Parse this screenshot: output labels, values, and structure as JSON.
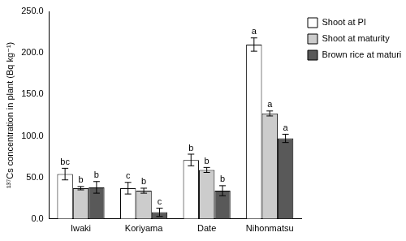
{
  "chart_data": {
    "type": "bar",
    "y_label": "¹³⁷Cs concentration in plant (Bq kg⁻¹)",
    "categories": [
      "Iwaki",
      "Koriyama",
      "Date",
      "Nihonmatsu"
    ],
    "series": [
      {
        "name": "Shoot at PI",
        "color": "#ffffff",
        "values": [
          54,
          37,
          71,
          210
        ],
        "errors": [
          7,
          7,
          7,
          8
        ],
        "letters": [
          "bc",
          "c",
          "b",
          "a"
        ]
      },
      {
        "name": "Shoot at maturity",
        "color": "#cccccc",
        "values": [
          37,
          34,
          59,
          127
        ],
        "errors": [
          2,
          3,
          3,
          3
        ],
        "letters": [
          "b",
          "b",
          "b",
          "a"
        ]
      },
      {
        "name": "Brown rice at maturity",
        "color": "#595959",
        "values": [
          38,
          8,
          34,
          97
        ],
        "errors": [
          7,
          5,
          6,
          5
        ],
        "letters": [
          "b",
          "c",
          "b",
          "a"
        ]
      }
    ],
    "ylim": [
      0,
      250
    ],
    "yticks": [
      {
        "value": 0,
        "label": "0.0"
      },
      {
        "value": 50,
        "label": "50.0"
      },
      {
        "value": 100,
        "label": "100.0"
      },
      {
        "value": 150,
        "label": "150.0"
      },
      {
        "value": 200,
        "label": "200.0"
      },
      {
        "value": 250,
        "label": "250.0"
      }
    ],
    "grid": false,
    "legend": "upper right"
  }
}
